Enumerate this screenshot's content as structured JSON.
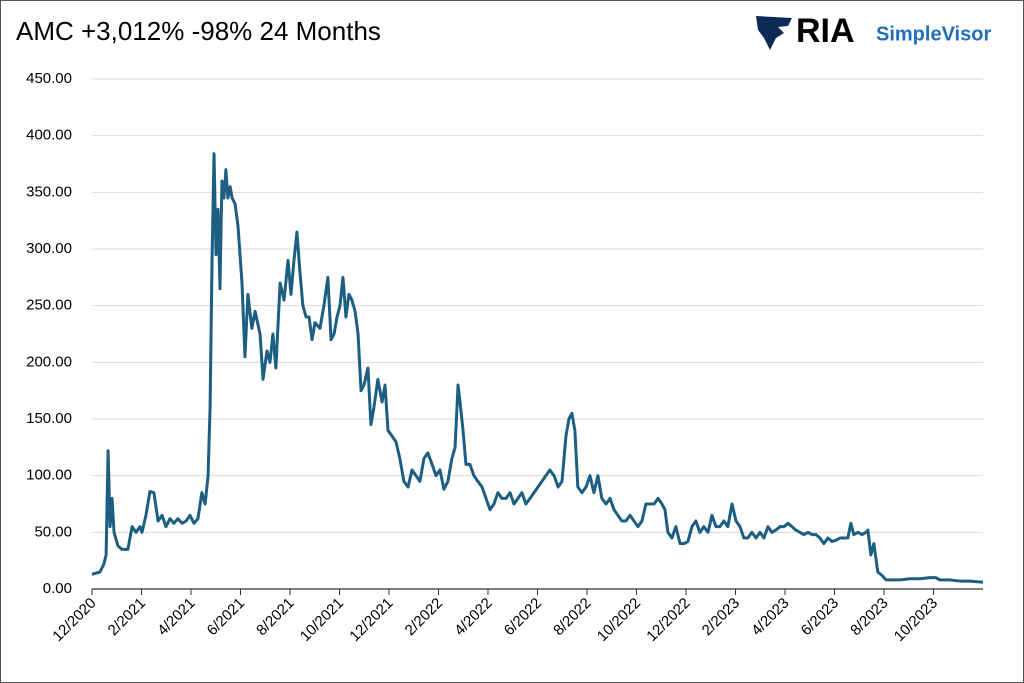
{
  "chart_data": {
    "type": "line",
    "title": "AMC  +3,012%   -98%   24 Months",
    "brand": "RIA",
    "brand_sub": "SimpleVisor",
    "xlim": [
      0,
      36
    ],
    "xticks": [
      {
        "value": 0,
        "label": "12/2020"
      },
      {
        "value": 2,
        "label": "2/2021"
      },
      {
        "value": 4,
        "label": "4/2021"
      },
      {
        "value": 6,
        "label": "6/2021"
      },
      {
        "value": 8,
        "label": "8/2021"
      },
      {
        "value": 10,
        "label": "10/2021"
      },
      {
        "value": 12,
        "label": "12/2021"
      },
      {
        "value": 14,
        "label": "2/2022"
      },
      {
        "value": 16,
        "label": "4/2022"
      },
      {
        "value": 18,
        "label": "6/2022"
      },
      {
        "value": 20,
        "label": "8/2022"
      },
      {
        "value": 22,
        "label": "10/2022"
      },
      {
        "value": 24,
        "label": "12/2022"
      },
      {
        "value": 26,
        "label": "2/2023"
      },
      {
        "value": 28,
        "label": "4/2023"
      },
      {
        "value": 30,
        "label": "6/2023"
      },
      {
        "value": 32,
        "label": "8/2023"
      },
      {
        "value": 34,
        "label": "10/2023"
      }
    ],
    "ylim": [
      0,
      450
    ],
    "yticks": [
      {
        "value": 0,
        "label": "0.00"
      },
      {
        "value": 50,
        "label": "50.00"
      },
      {
        "value": 100,
        "label": "100.00"
      },
      {
        "value": 150,
        "label": "150.00"
      },
      {
        "value": 200,
        "label": "200.00"
      },
      {
        "value": 250,
        "label": "250.00"
      },
      {
        "value": 300,
        "label": "300.00"
      },
      {
        "value": 350,
        "label": "350.00"
      },
      {
        "value": 400,
        "label": "400.00"
      },
      {
        "value": 450,
        "label": "450.00"
      }
    ],
    "grid": true,
    "series": [
      {
        "name": "AMC",
        "color": "#1d5f82",
        "x": [
          0,
          0.32,
          0.48,
          0.57,
          0.65,
          0.73,
          0.81,
          0.89,
          1.05,
          1.21,
          1.45,
          1.62,
          1.78,
          1.94,
          2.02,
          2.18,
          2.34,
          2.5,
          2.67,
          2.83,
          2.99,
          3.15,
          3.31,
          3.47,
          3.64,
          3.8,
          3.96,
          4.12,
          4.28,
          4.44,
          4.57,
          4.69,
          4.77,
          4.85,
          4.93,
          5.01,
          5.09,
          5.17,
          5.25,
          5.33,
          5.41,
          5.49,
          5.58,
          5.66,
          5.78,
          5.9,
          6.06,
          6.18,
          6.3,
          6.46,
          6.59,
          6.79,
          6.91,
          7.07,
          7.19,
          7.31,
          7.43,
          7.6,
          7.76,
          7.92,
          8.04,
          8.16,
          8.28,
          8.4,
          8.52,
          8.65,
          8.77,
          8.89,
          9.01,
          9.21,
          9.37,
          9.53,
          9.66,
          9.78,
          9.9,
          10.02,
          10.14,
          10.26,
          10.38,
          10.5,
          10.63,
          10.75,
          10.87,
          10.99,
          11.15,
          11.27,
          11.39,
          11.55,
          11.72,
          11.84,
          11.96,
          12.12,
          12.28,
          12.44,
          12.6,
          12.77,
          12.93,
          13.09,
          13.25,
          13.41,
          13.57,
          13.74,
          13.9,
          14.06,
          14.22,
          14.38,
          14.54,
          14.67,
          14.79,
          14.87,
          14.99,
          15.11,
          15.27,
          15.43,
          15.59,
          15.76,
          15.92,
          16.08,
          16.24,
          16.4,
          16.56,
          16.73,
          16.89,
          17.05,
          17.21,
          17.37,
          17.53,
          17.7,
          17.86,
          18.02,
          18.18,
          18.34,
          18.5,
          18.67,
          18.83,
          18.99,
          19.15,
          19.27,
          19.39,
          19.51,
          19.63,
          19.8,
          19.96,
          20.12,
          20.28,
          20.44,
          20.6,
          20.77,
          20.93,
          21.09,
          21.25,
          21.41,
          21.57,
          21.74,
          21.9,
          22.06,
          22.22,
          22.38,
          22.54,
          22.71,
          22.87,
          23.03,
          23.15,
          23.27,
          23.43,
          23.59,
          23.76,
          23.92,
          24.08,
          24.24,
          24.4,
          24.56,
          24.72,
          24.89,
          25.05,
          25.21,
          25.37,
          25.53,
          25.69,
          25.86,
          26.02,
          26.18,
          26.34,
          26.5,
          26.66,
          26.83,
          26.99,
          27.15,
          27.31,
          27.47,
          27.63,
          27.8,
          27.96,
          28.12,
          28.28,
          28.44,
          28.6,
          28.76,
          28.93,
          29.09,
          29.25,
          29.41,
          29.57,
          29.73,
          29.9,
          30.06,
          30.22,
          30.38,
          30.54,
          30.66,
          30.78,
          30.95,
          31.11,
          31.27,
          31.35,
          31.47,
          31.59,
          31.75,
          31.92,
          32.08,
          32.24,
          32.64,
          33.05,
          33.45,
          33.86,
          34.1,
          34.26,
          34.66,
          35.07,
          35.47,
          36
        ],
        "values": [
          13,
          15,
          22,
          30,
          122,
          55,
          80,
          50,
          38,
          35,
          35,
          55,
          50,
          55,
          50,
          65,
          86,
          85,
          60,
          65,
          55,
          62,
          58,
          62,
          58,
          60,
          65,
          58,
          62,
          85,
          75,
          100,
          160,
          290,
          384,
          295,
          335,
          265,
          360,
          345,
          370,
          345,
          355,
          345,
          340,
          320,
          270,
          205,
          260,
          230,
          245,
          225,
          185,
          210,
          200,
          225,
          195,
          270,
          255,
          290,
          260,
          290,
          315,
          280,
          250,
          240,
          240,
          220,
          235,
          230,
          250,
          275,
          220,
          225,
          240,
          250,
          275,
          240,
          260,
          255,
          245,
          225,
          175,
          180,
          195,
          145,
          160,
          185,
          165,
          180,
          140,
          135,
          130,
          115,
          95,
          90,
          105,
          100,
          95,
          115,
          120,
          110,
          100,
          105,
          88,
          95,
          115,
          125,
          180,
          165,
          140,
          110,
          110,
          100,
          95,
          90,
          80,
          70,
          75,
          85,
          80,
          80,
          85,
          75,
          80,
          85,
          75,
          80,
          85,
          90,
          95,
          100,
          105,
          100,
          90,
          95,
          135,
          150,
          155,
          140,
          90,
          85,
          90,
          100,
          85,
          100,
          80,
          75,
          80,
          70,
          65,
          60,
          60,
          65,
          60,
          55,
          60,
          75,
          75,
          75,
          80,
          75,
          70,
          50,
          45,
          55,
          40,
          40,
          42,
          55,
          60,
          50,
          55,
          50,
          65,
          55,
          55,
          60,
          55,
          75,
          60,
          55,
          45,
          45,
          50,
          45,
          50,
          45,
          55,
          50,
          52,
          55,
          55,
          58,
          55,
          52,
          50,
          48,
          50,
          48,
          48,
          45,
          40,
          45,
          42,
          43,
          45,
          45,
          45,
          58,
          48,
          50,
          48,
          50,
          52,
          30,
          40,
          15,
          12,
          8,
          8,
          8,
          9,
          9,
          10,
          10,
          8,
          8,
          7,
          7,
          6
        ]
      }
    ]
  }
}
